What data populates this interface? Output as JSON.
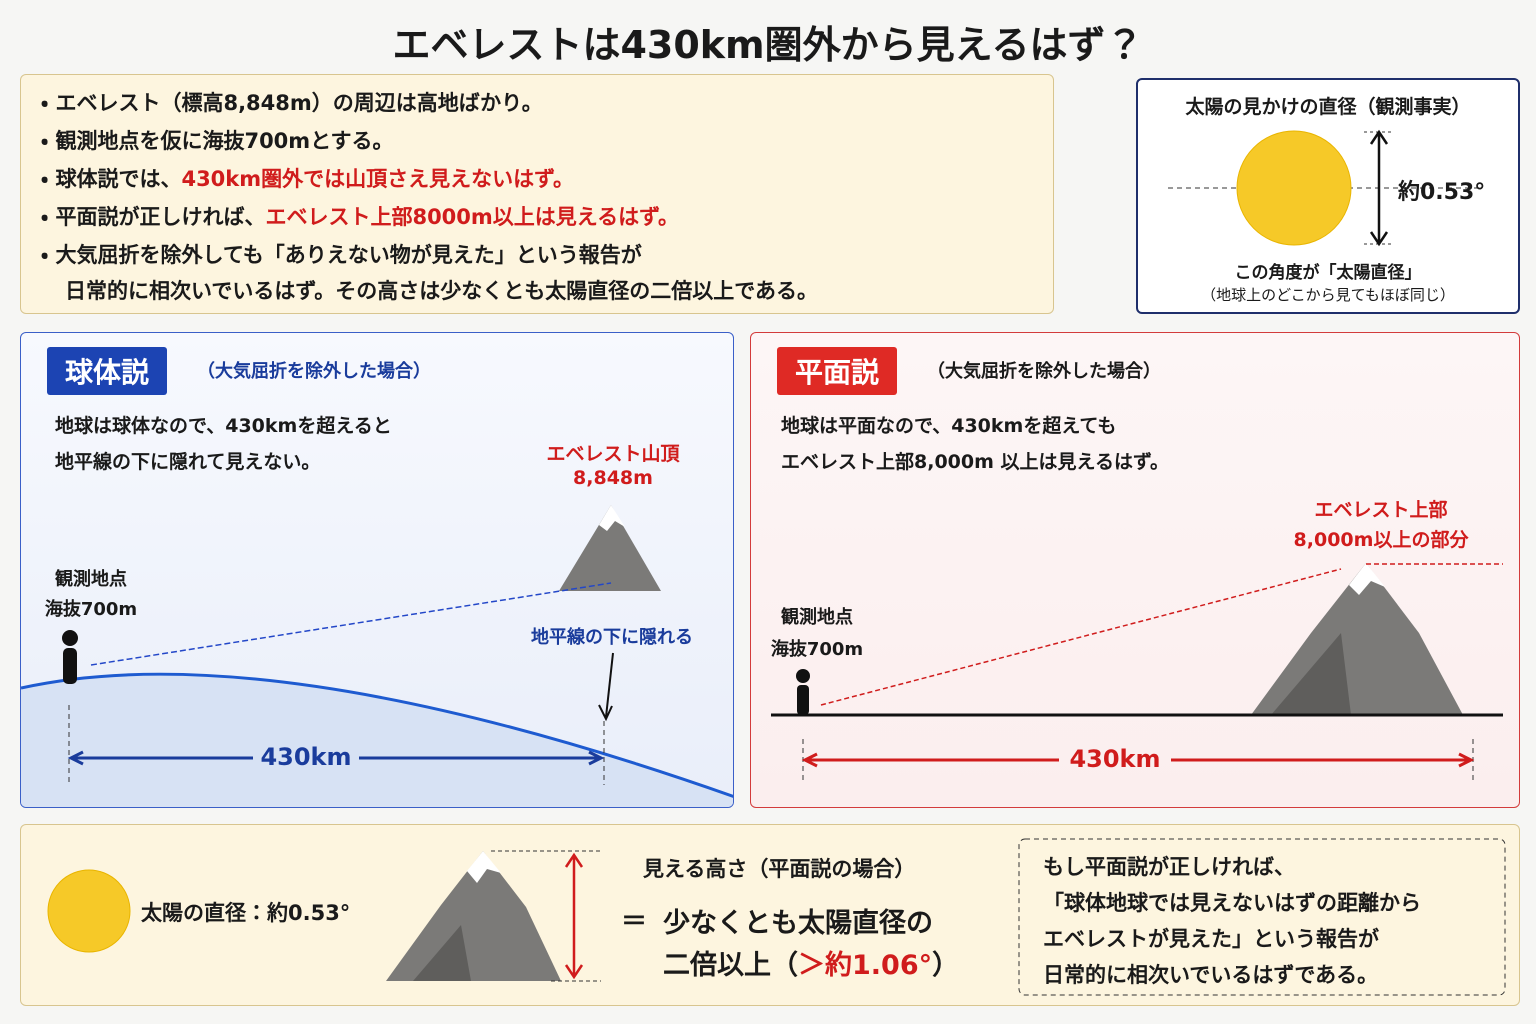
{
  "title": "エベレストは430km圏外から見えるはず？",
  "intro": {
    "bullets": [
      {
        "text": "エベレスト（標高8,848m）の周辺は高地ばかり。"
      },
      {
        "text": "観測地点を仮に海抜700mとする。"
      },
      {
        "text": "球体説では、",
        "emphasis": "430km圏外では山頂さえ見えないはず。"
      },
      {
        "text": "平面説が正しければ、",
        "emphasis": "エベレスト上部8000m以上は見えるはず。"
      },
      {
        "lines": [
          "大気屈折を除外しても「ありえない物が見えた」という報告が",
          "日常的に相次いでいるはず。その高さは少なくとも太陽直径の二倍以上である。"
        ]
      }
    ]
  },
  "sun_box": {
    "title": "太陽の見かけの直径（観測事実）",
    "angle": "約0.53°",
    "caption": [
      "この角度が「太陽直径」",
      "（地球上のどこから見てもほぼ同じ）"
    ]
  },
  "globe": {
    "badge": "球体説",
    "note": "（大気屈折を除外した場合）",
    "text": [
      "地球は球体なので、430kmを超えると",
      "地平線の下に隠れて見えない。"
    ],
    "summit": [
      "エベレスト山頂",
      "8,848m"
    ],
    "observer": [
      "観測地点",
      "海抜700m"
    ],
    "hidden": "地平線の下に隠れる",
    "distance": "430km"
  },
  "flat": {
    "badge": "平面説",
    "note": "（大気屈折を除外した場合）",
    "text": [
      "地球は平面なので、430kmを超えても",
      "エベレスト上部8,000m 以上は見えるはず。"
    ],
    "summit": [
      "エベレスト上部",
      "8,000m以上の部分"
    ],
    "observer": [
      "観測地点",
      "海抜700m"
    ],
    "distance": "430km"
  },
  "bottom": {
    "sun": "太陽の直径：約0.53°",
    "heading": "見える高さ（平面説の場合）",
    "equals": "＝",
    "line1": "少なくとも太陽直径の",
    "line2": "二倍以上（",
    "emphasis": "＞約1.06°",
    "close": "）",
    "conclusion": [
      "もし平面説が正しければ、",
      "「球体地球では見えないはずの距離から",
      "エベレストが見えた」という報告が",
      "日常的に相次いでいるはずである。"
    ]
  }
}
